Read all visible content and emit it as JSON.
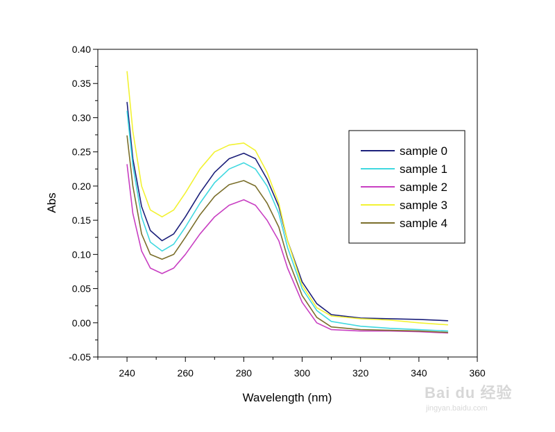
{
  "chart_data": {
    "type": "line",
    "title": "",
    "xlabel": "Wavelength (nm)",
    "ylabel": "Abs",
    "xlim": [
      230,
      360
    ],
    "ylim": [
      -0.05,
      0.4
    ],
    "x_ticks": [
      240,
      260,
      280,
      300,
      320,
      340,
      360
    ],
    "y_ticks": [
      -0.05,
      0.0,
      0.05,
      0.1,
      0.15,
      0.2,
      0.25,
      0.3,
      0.35,
      0.4
    ],
    "grid": false,
    "legend_position": "right",
    "series": [
      {
        "name": "sample 0",
        "color": "#1b1f7a",
        "x": [
          240,
          242,
          245,
          248,
          252,
          256,
          260,
          265,
          270,
          275,
          280,
          284,
          288,
          292,
          295,
          300,
          305,
          310,
          320,
          330,
          340,
          350
        ],
        "y": [
          0.323,
          0.24,
          0.17,
          0.135,
          0.12,
          0.13,
          0.155,
          0.19,
          0.22,
          0.24,
          0.248,
          0.24,
          0.21,
          0.17,
          0.12,
          0.06,
          0.028,
          0.012,
          0.007,
          0.006,
          0.005,
          0.003
        ]
      },
      {
        "name": "sample 1",
        "color": "#3fd8e0",
        "x": [
          240,
          242,
          245,
          248,
          252,
          256,
          260,
          265,
          270,
          275,
          280,
          284,
          288,
          292,
          295,
          300,
          305,
          310,
          320,
          330,
          340,
          350
        ],
        "y": [
          0.31,
          0.23,
          0.155,
          0.118,
          0.105,
          0.115,
          0.14,
          0.175,
          0.205,
          0.225,
          0.234,
          0.225,
          0.2,
          0.16,
          0.11,
          0.05,
          0.018,
          0.002,
          -0.005,
          -0.008,
          -0.01,
          -0.012
        ]
      },
      {
        "name": "sample 2",
        "color": "#c83ec2",
        "x": [
          240,
          242,
          245,
          248,
          252,
          256,
          260,
          265,
          270,
          275,
          280,
          284,
          288,
          292,
          295,
          300,
          305,
          310,
          320,
          330,
          340,
          350
        ],
        "y": [
          0.232,
          0.16,
          0.105,
          0.08,
          0.072,
          0.08,
          0.1,
          0.13,
          0.155,
          0.172,
          0.18,
          0.172,
          0.15,
          0.12,
          0.08,
          0.03,
          0.0,
          -0.01,
          -0.012,
          -0.012,
          -0.013,
          -0.015
        ]
      },
      {
        "name": "sample 3",
        "color": "#f2f232",
        "x": [
          240,
          242,
          245,
          248,
          252,
          256,
          260,
          265,
          270,
          275,
          280,
          284,
          288,
          292,
          295,
          300,
          305,
          310,
          320,
          330,
          340,
          350
        ],
        "y": [
          0.368,
          0.28,
          0.2,
          0.165,
          0.155,
          0.165,
          0.19,
          0.225,
          0.25,
          0.26,
          0.263,
          0.252,
          0.22,
          0.175,
          0.12,
          0.055,
          0.022,
          0.01,
          0.006,
          0.004,
          0.0,
          -0.003
        ]
      },
      {
        "name": "sample 4",
        "color": "#7a6e2a",
        "x": [
          240,
          242,
          245,
          248,
          252,
          256,
          260,
          265,
          270,
          275,
          280,
          284,
          288,
          292,
          295,
          300,
          305,
          310,
          320,
          330,
          340,
          350
        ],
        "y": [
          0.274,
          0.2,
          0.13,
          0.1,
          0.093,
          0.1,
          0.125,
          0.158,
          0.185,
          0.202,
          0.208,
          0.2,
          0.175,
          0.14,
          0.095,
          0.04,
          0.008,
          -0.006,
          -0.01,
          -0.011,
          -0.012,
          -0.014
        ]
      }
    ]
  },
  "watermark": {
    "logo": "Bai du 经验",
    "url": "jingyan.baidu.com"
  }
}
